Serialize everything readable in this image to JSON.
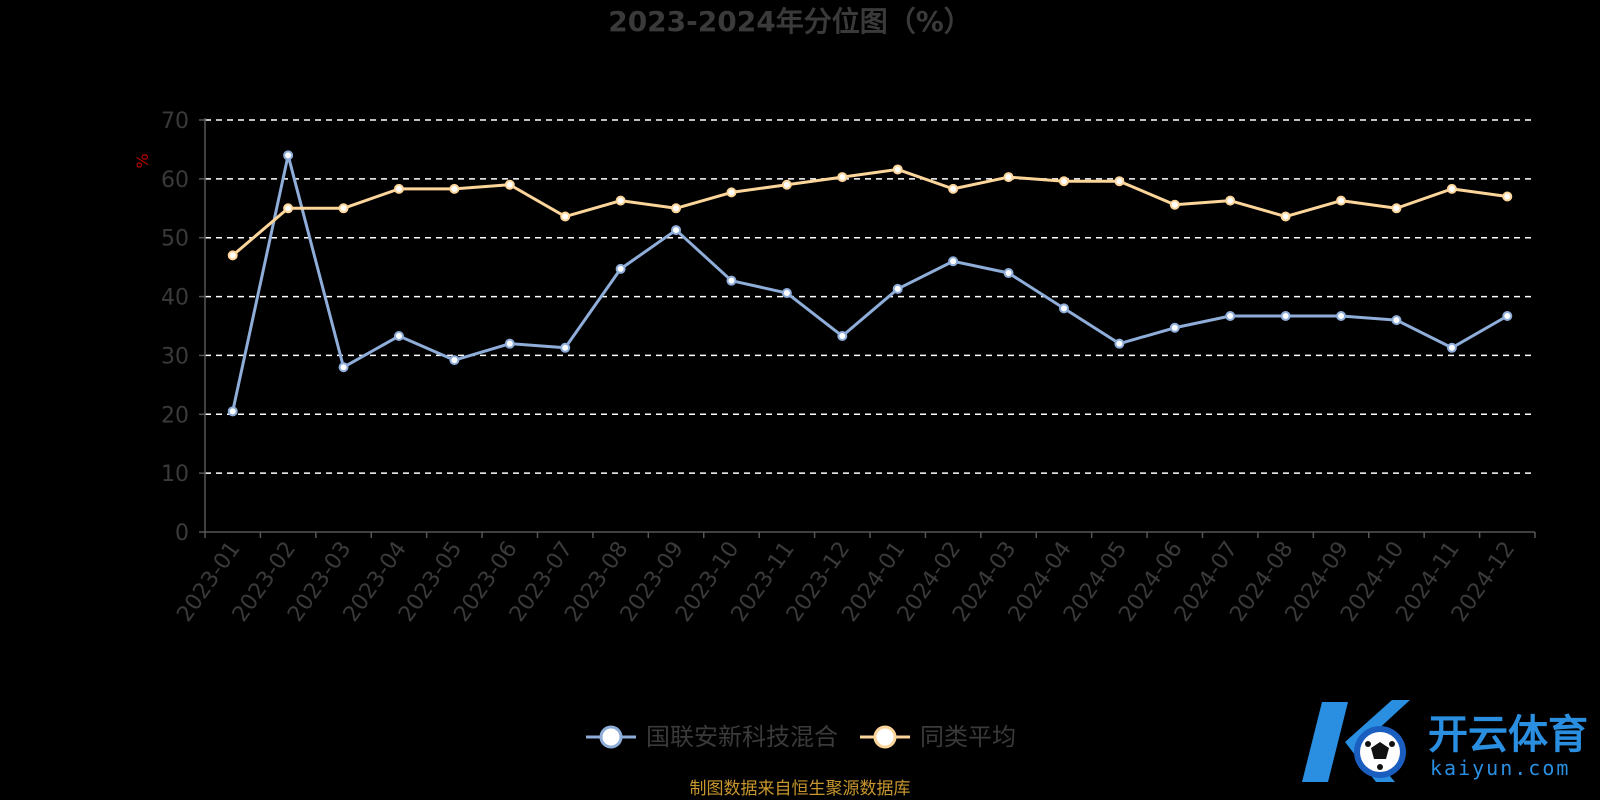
{
  "chart_data": {
    "type": "line",
    "title": "2023-2024年分位图（%）",
    "ylabel": "%",
    "xlabel": "",
    "ylim": [
      0,
      70
    ],
    "yticks": [
      0,
      10,
      20,
      30,
      40,
      50,
      60,
      70
    ],
    "grid": true,
    "legend_position": "bottom",
    "categories": [
      "2023-01",
      "2023-02",
      "2023-03",
      "2023-04",
      "2023-05",
      "2023-06",
      "2023-07",
      "2023-08",
      "2023-09",
      "2023-10",
      "2023-11",
      "2023-12",
      "2024-01",
      "2024-02",
      "2024-03",
      "2024-04",
      "2024-05",
      "2024-06",
      "2024-07",
      "2024-08",
      "2024-09",
      "2024-10",
      "2024-11",
      "2024-12"
    ],
    "series": [
      {
        "name": "国联安新科技混合",
        "color": "#8fadd9",
        "values": [
          20.5,
          64,
          28,
          33.3,
          29.2,
          32,
          31.3,
          44.7,
          51.3,
          42.7,
          40.6,
          33.3,
          41.3,
          46,
          44,
          38,
          32,
          34.7,
          36.7,
          36.7,
          36.7,
          36,
          31.3,
          36.7
        ]
      },
      {
        "name": "同类平均",
        "color": "#fcd59a",
        "values": [
          47,
          55,
          55,
          58.3,
          58.3,
          59,
          53.6,
          56.3,
          55,
          57.7,
          59,
          60.3,
          61.6,
          58.3,
          60.3,
          59.6,
          59.6,
          55.6,
          56.3,
          53.6,
          56.3,
          55,
          58.3,
          57
        ]
      }
    ],
    "source_note": "制图数据来自恒生聚源数据库"
  },
  "watermark": {
    "brand_cn": "开云体育",
    "brand_en": "kaiyun.com",
    "colors": {
      "primary": "#2a8fe0",
      "secondary": "#1a5fc0"
    }
  },
  "colors": {
    "background": "#000000",
    "grid": "#ffffff",
    "axis": "#555555",
    "text": "#3a3a3a"
  }
}
